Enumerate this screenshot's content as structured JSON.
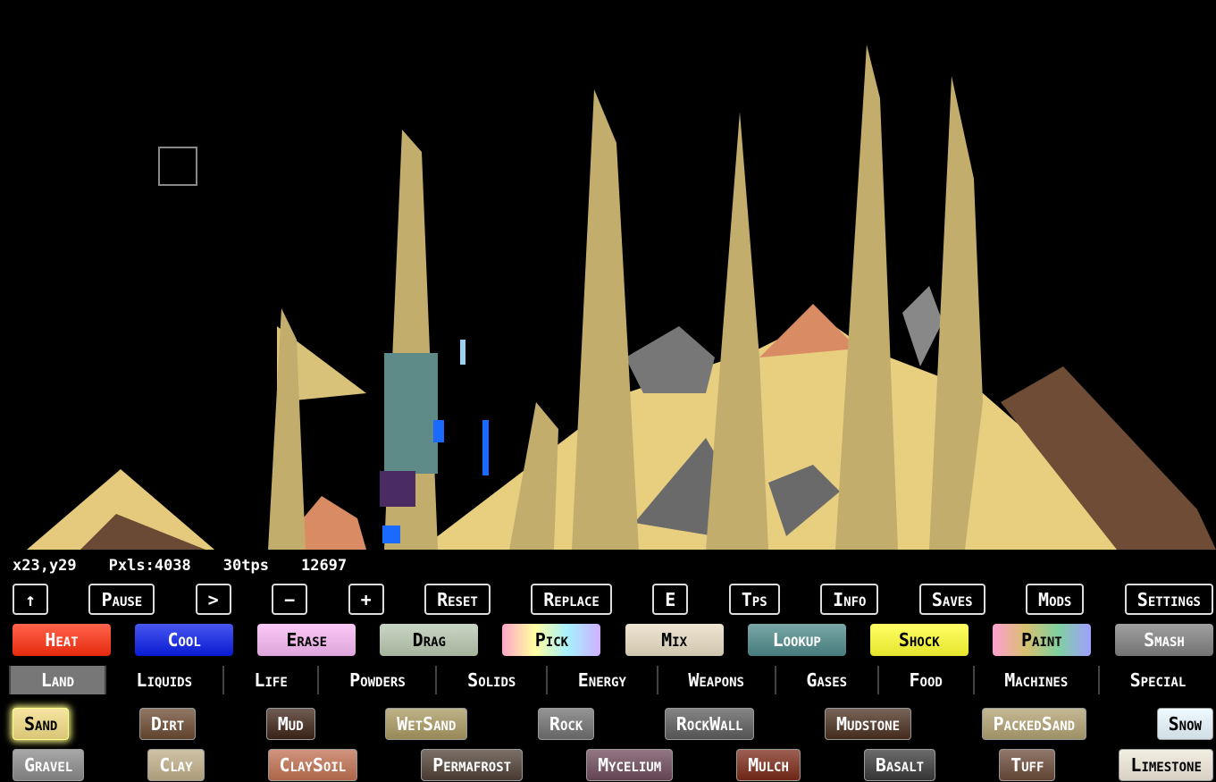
{
  "status": [
    "x23,y29",
    "Pxls:4038",
    "30tps",
    "12697"
  ],
  "controls": [
    "↑",
    "Pause",
    ">",
    "−",
    "+",
    "Reset",
    "Replace",
    "E",
    "Tps",
    "Info",
    "Saves",
    "Mods",
    "Settings"
  ],
  "tools": [
    {
      "label": "Heat",
      "color": "#ff2f0f"
    },
    {
      "label": "Cool",
      "color": "#0a1eea"
    },
    {
      "label": "Erase",
      "color": "#f7b7f3"
    },
    {
      "label": "Drag",
      "color": "#b8c8b0"
    },
    {
      "label": "Pick",
      "color": [
        "#ffa6c9",
        "#ffffa0",
        "#a6f0ff",
        "#d0b0ff"
      ]
    },
    {
      "label": "Mix",
      "color": "#e8dcc3"
    },
    {
      "label": "Lookup",
      "color": "#4e8a8a"
    },
    {
      "label": "Shock",
      "color": "#ffff33"
    },
    {
      "label": "Paint",
      "color": [
        "#ff9fd0",
        "#d8c070",
        "#80d0a0",
        "#a0a0ff"
      ]
    },
    {
      "label": "Smash",
      "color": "#808080"
    }
  ],
  "categories": [
    "Land",
    "Liquids",
    "Life",
    "Powders",
    "Solids",
    "Energy",
    "Weapons",
    "Gases",
    "Food",
    "Machines",
    "Special"
  ],
  "selected_category": 0,
  "elements": [
    [
      {
        "label": "Sand",
        "color": "#f2dc82",
        "selected": true
      },
      {
        "label": "Dirt",
        "color": "#6b4a32"
      },
      {
        "label": "Mud",
        "color": "#3f2518"
      },
      {
        "label": "WetSand",
        "color": "#a89860"
      },
      {
        "label": "Rock",
        "color": "#707070"
      },
      {
        "label": "RockWall",
        "color": "#5c5c5c"
      },
      {
        "label": "Mudstone",
        "color": "#4a3020"
      },
      {
        "label": "PackedSand",
        "color": "#b0a070"
      },
      {
        "label": "Snow",
        "color": "#e8f8ff"
      }
    ],
    [
      {
        "label": "Gravel",
        "color": "#8a8a8a"
      },
      {
        "label": "Clay",
        "color": "#bfae88"
      },
      {
        "label": "ClaySoil",
        "color": "#c07050"
      },
      {
        "label": "Permafrost",
        "color": "#504035"
      },
      {
        "label": "Mycelium",
        "color": "#6d4a5a"
      },
      {
        "label": "Mulch",
        "color": "#7a2a18"
      },
      {
        "label": "Basalt",
        "color": "#3a3a3a"
      },
      {
        "label": "Tuff",
        "color": "#6a4a38"
      },
      {
        "label": "Limestone",
        "color": "#efe9d9"
      }
    ]
  ]
}
